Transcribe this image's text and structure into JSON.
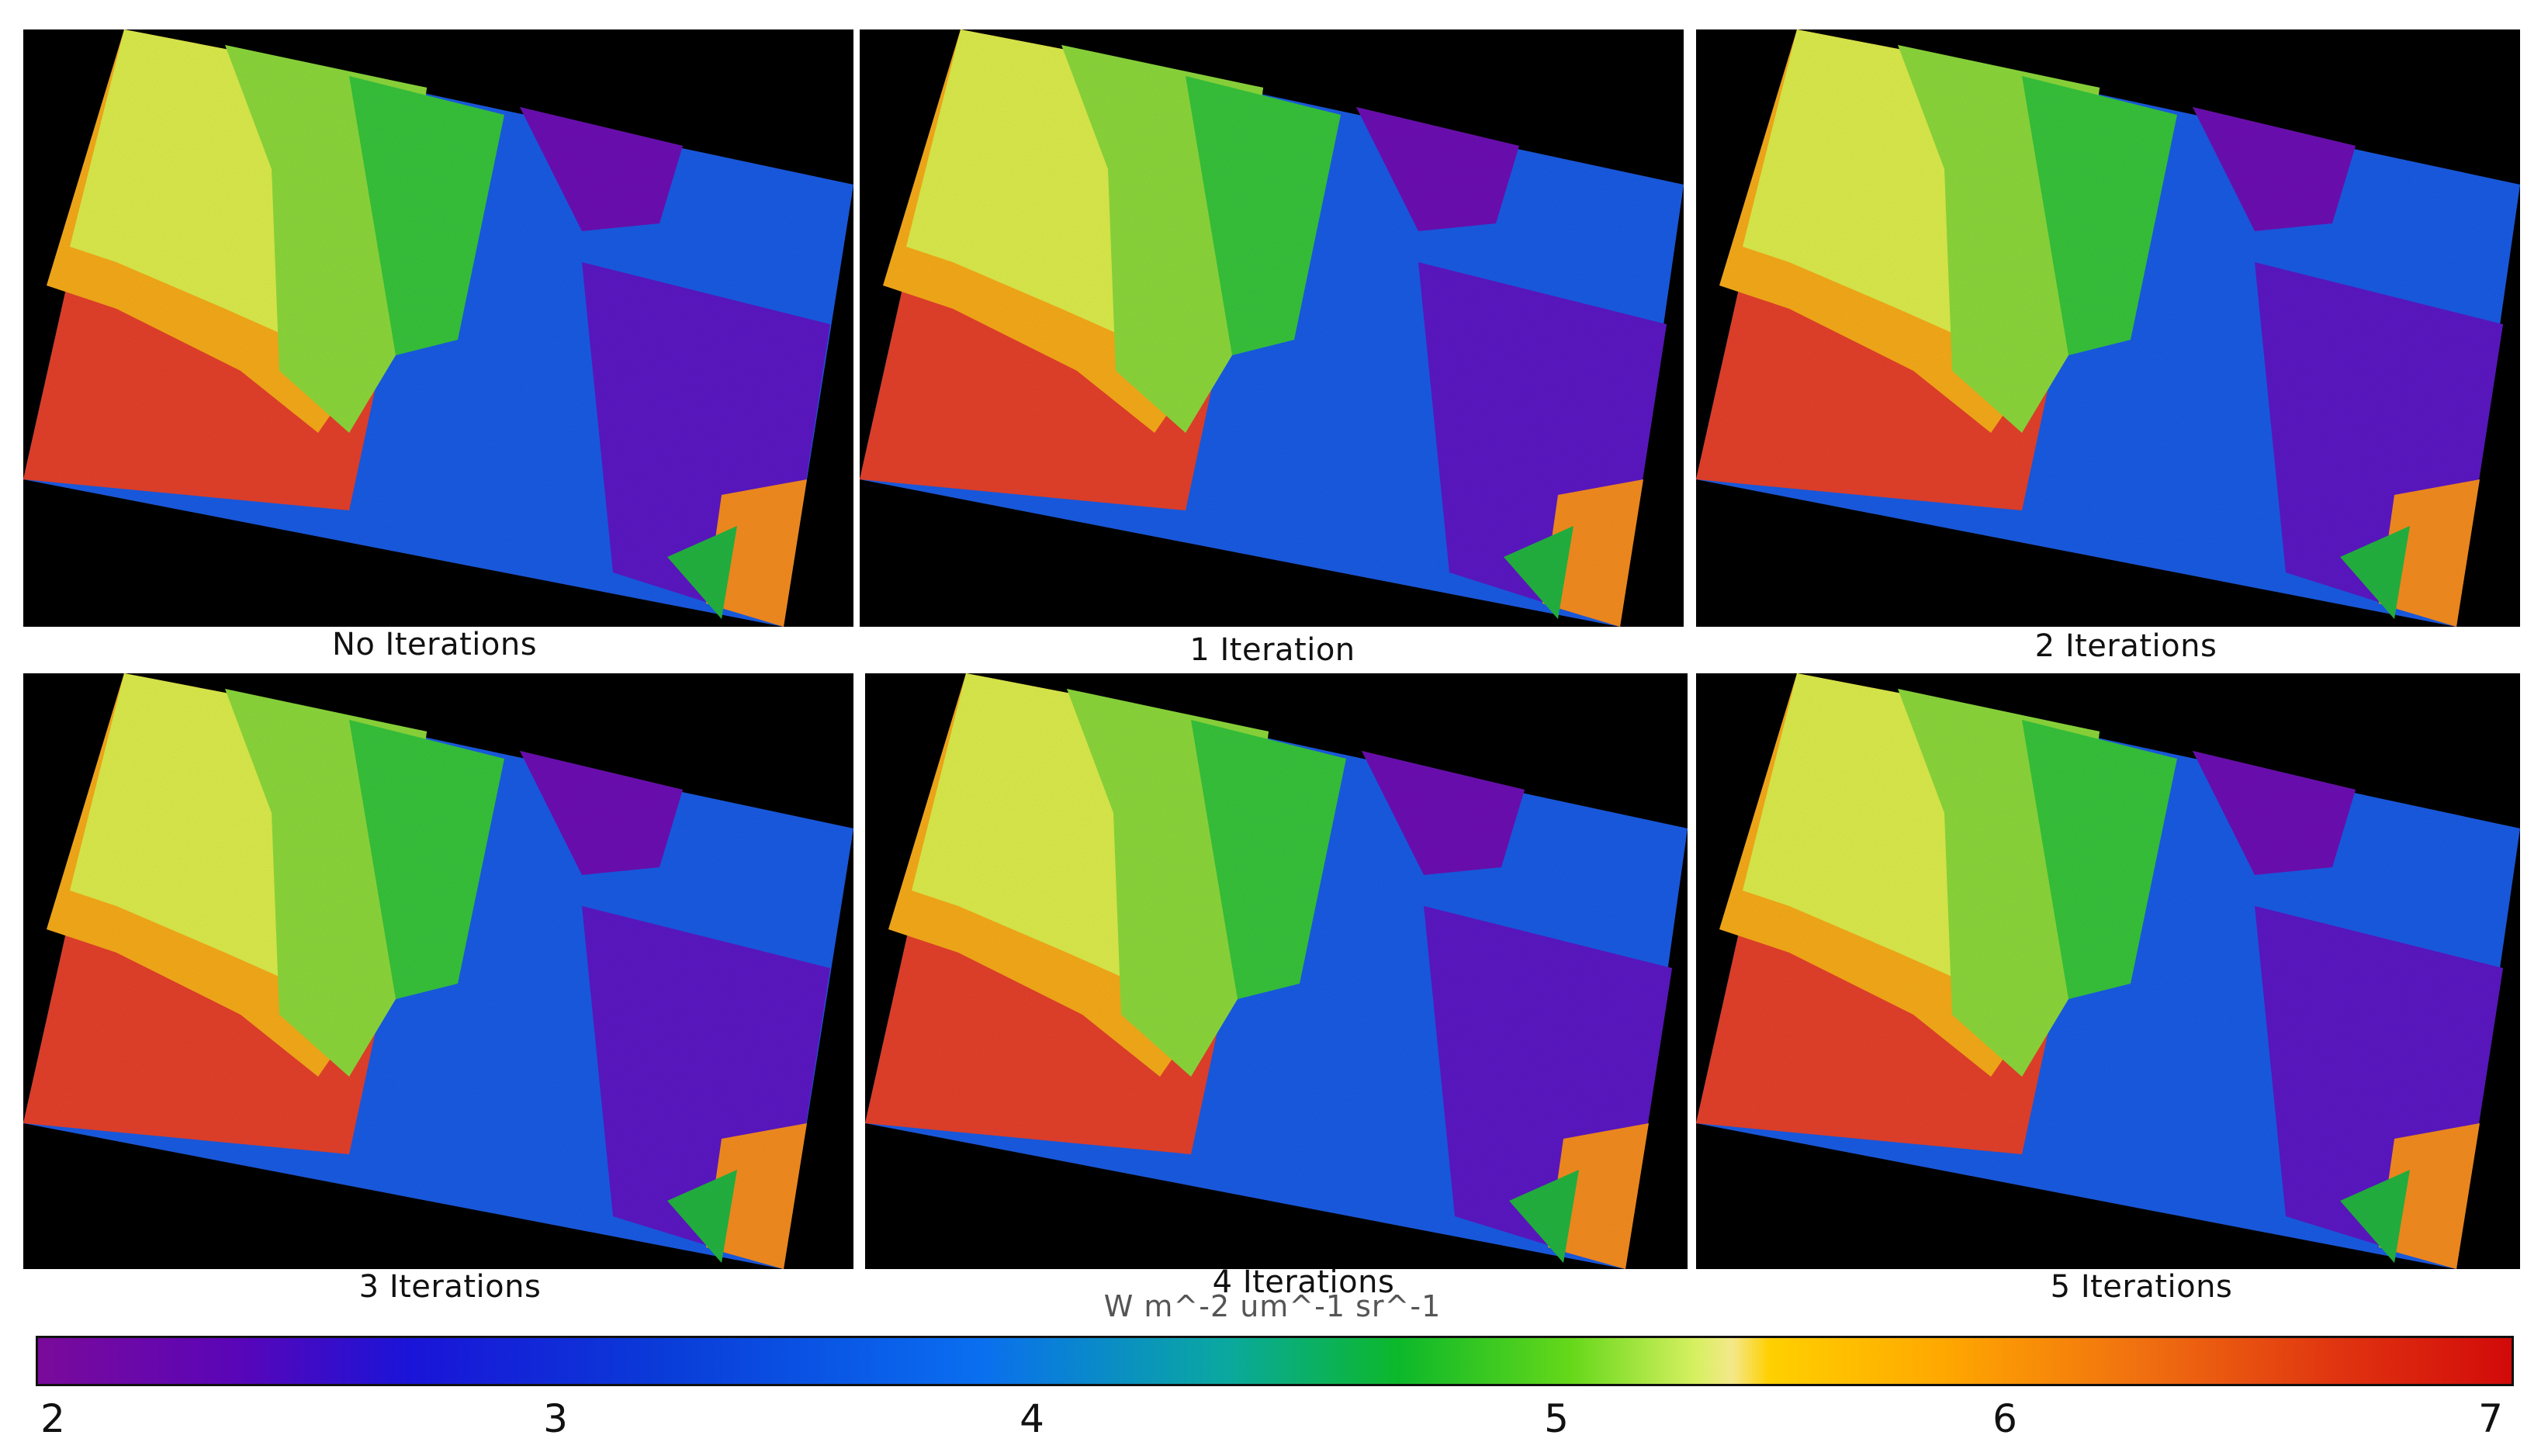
{
  "panels": [
    {
      "caption": "No Iterations"
    },
    {
      "caption": "1 Iteration"
    },
    {
      "caption": "2 Iterations"
    },
    {
      "caption": "3 Iterations"
    },
    {
      "caption": "4 Iterations"
    },
    {
      "caption": "5 Iterations"
    }
  ],
  "colorbar": {
    "unit_label": "W m^-2 um^-1 sr^-1",
    "ticks": [
      "2",
      "3",
      "4",
      "5",
      "6",
      "7"
    ],
    "colors": [
      "#7a0a9a",
      "#1a14d8",
      "#0a6ef0",
      "#0cb82a",
      "#d6f060",
      "#ffd000",
      "#f07010",
      "#d20a0a"
    ]
  }
}
